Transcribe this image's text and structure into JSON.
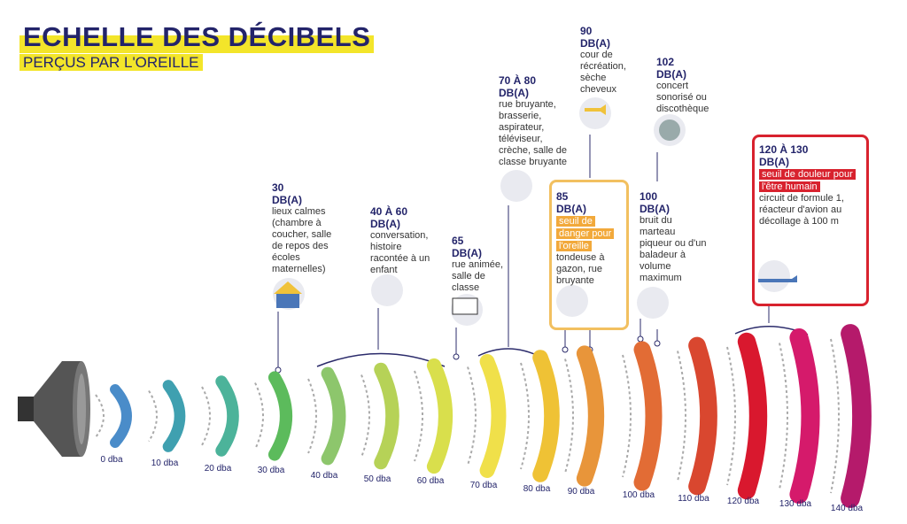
{
  "header": {
    "title": "ECHELLE DES DÉCIBELS",
    "subtitle": "PERÇUS PAR L'OREILLE"
  },
  "scale": [
    "0 dba",
    "10 dba",
    "20 dba",
    "30 dba",
    "40 dba",
    "50 dba",
    "60 dba",
    "70 dba",
    "80 dba",
    "90 dba",
    "100 dba",
    "110 dba",
    "120 dba",
    "130 dba",
    "140 dba"
  ],
  "annotations": [
    {
      "level": "30",
      "unit": "DB(A)",
      "description": "lieux calmes (chambre à coucher, salle de repos des écoles maternelles)"
    },
    {
      "level": "40 À 60",
      "unit": "DB(A)",
      "description": "conversation, histoire racontée à un enfant"
    },
    {
      "level": "65",
      "unit": "DB(A)",
      "description": "rue animée, salle de classe"
    },
    {
      "level": "70 À 80",
      "unit": "DB(A)",
      "description": "rue bruyante, brasserie, aspirateur, téléviseur, crèche, salle de classe bruyante"
    },
    {
      "level": "85",
      "unit": "DB(A)",
      "warning": "seuil de danger pour l'oreille",
      "description": "tondeuse à gazon, rue bruyante"
    },
    {
      "level": "90",
      "unit": "DB(A)",
      "description": "cour de récréation, sèche cheveux"
    },
    {
      "level": "100",
      "unit": "DB(A)",
      "description": "bruit du marteau piqueur ou d'un baladeur à volume maximum"
    },
    {
      "level": "102",
      "unit": "DB(A)",
      "description": "concert sonorisé ou discothèque"
    },
    {
      "level": "120 À 130",
      "unit": "DB(A)",
      "warning": "seuil de douleur pour l'être humain",
      "description": "circuit de formule 1, réacteur d'avion au décollage à 100 m"
    }
  ]
}
